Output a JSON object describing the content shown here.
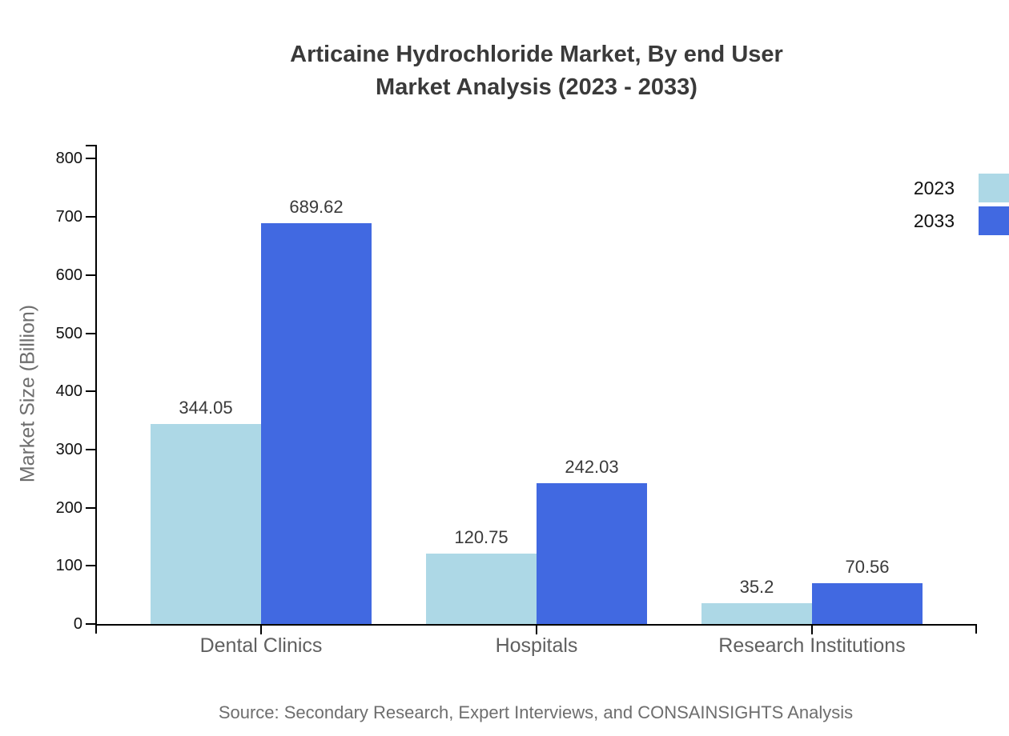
{
  "chart_data": {
    "type": "bar",
    "title_lines": [
      "Articaine Hydrochloride Market, By end User",
      "Market Analysis (2023 - 2033)"
    ],
    "categories": [
      "Dental Clinics",
      "Hospitals",
      "Research Institutions"
    ],
    "series": [
      {
        "name": "2023",
        "color": "#ADD8E6",
        "values": [
          344.05,
          120.75,
          35.2
        ],
        "labels": [
          "344.05",
          "120.75",
          "35.2"
        ]
      },
      {
        "name": "2033",
        "color": "#4169E1",
        "values": [
          689.62,
          242.03,
          70.56
        ],
        "labels": [
          "689.62",
          "242.03",
          "70.56"
        ]
      }
    ],
    "ylabel": "Market Size (Billion)",
    "ylim": [
      0,
      800
    ],
    "yticks": [
      0,
      100,
      200,
      300,
      400,
      500,
      600,
      700,
      800
    ],
    "grid": false,
    "legend_position": "right-edge",
    "axis_color": "#000000",
    "source": "Source: Secondary Research, Expert Interviews, and CONSAINSIGHTS Analysis"
  }
}
